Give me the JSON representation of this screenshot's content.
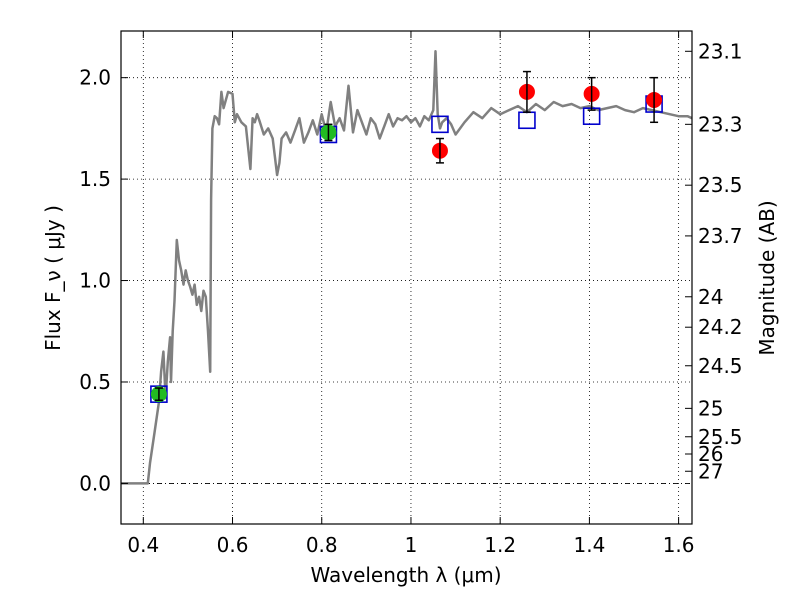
{
  "chart_data": {
    "type": "scatter",
    "xlabel": "Wavelength  λ (μm)",
    "ylabel": "Flux  F_ν  ( μJy )",
    "y2label": "Magnitude (AB)",
    "xlim": [
      0.35,
      1.63
    ],
    "ylim": [
      -0.2,
      2.23
    ],
    "x_ticks": [
      0.4,
      0.6,
      0.8,
      1.0,
      1.2,
      1.4,
      1.6
    ],
    "x_tick_labels": [
      "0.4",
      "0.6",
      "0.8",
      "1",
      "1.2",
      "1.4",
      "1.6"
    ],
    "y_ticks": [
      0.0,
      0.5,
      1.0,
      1.5,
      2.0
    ],
    "y_tick_labels": [
      "0.0",
      "0.5",
      "1.0",
      "1.5",
      "2.0"
    ],
    "y2_ticks": [
      {
        "label": "23.1",
        "flux": 2.13
      },
      {
        "label": "23.3",
        "flux": 1.77
      },
      {
        "label": "23.5",
        "flux": 1.47
      },
      {
        "label": "23.7",
        "flux": 1.22
      },
      {
        "label": "24",
        "flux": 0.92
      },
      {
        "label": "24.2",
        "flux": 0.77
      },
      {
        "label": "24.5",
        "flux": 0.58
      },
      {
        "label": "25",
        "flux": 0.37
      },
      {
        "label": "25.5",
        "flux": 0.23
      },
      {
        "label": "26",
        "flux": 0.145
      },
      {
        "label": "27",
        "flux": 0.06
      }
    ],
    "grid": true,
    "zero_line": 0.0,
    "colors": {
      "model": "#808080",
      "photometry_red": "#ff0000",
      "photometry_green": "#22bb22",
      "model_boxes": "#0000cc",
      "errorbar": "#000000"
    },
    "series": [
      {
        "kind": "model-spectrum",
        "x": [
          0.35,
          0.38,
          0.41,
          0.415,
          0.425,
          0.435,
          0.44,
          0.445,
          0.45,
          0.455,
          0.46,
          0.462,
          0.466,
          0.47,
          0.475,
          0.48,
          0.485,
          0.49,
          0.495,
          0.5,
          0.505,
          0.51,
          0.515,
          0.52,
          0.525,
          0.53,
          0.535,
          0.54,
          0.545,
          0.55,
          0.552,
          0.555,
          0.56,
          0.565,
          0.57,
          0.575,
          0.58,
          0.59,
          0.6,
          0.605,
          0.61,
          0.615,
          0.62,
          0.63,
          0.64,
          0.645,
          0.65,
          0.655,
          0.66,
          0.67,
          0.68,
          0.69,
          0.7,
          0.705,
          0.71,
          0.72,
          0.73,
          0.74,
          0.75,
          0.76,
          0.77,
          0.78,
          0.79,
          0.8,
          0.81,
          0.82,
          0.83,
          0.84,
          0.85,
          0.86,
          0.87,
          0.88,
          0.89,
          0.9,
          0.91,
          0.92,
          0.93,
          0.94,
          0.95,
          0.96,
          0.97,
          0.98,
          0.99,
          1.0,
          1.01,
          1.02,
          1.03,
          1.04,
          1.05,
          1.055,
          1.06,
          1.065,
          1.07,
          1.08,
          1.09,
          1.1,
          1.12,
          1.14,
          1.16,
          1.18,
          1.2,
          1.22,
          1.24,
          1.26,
          1.28,
          1.3,
          1.32,
          1.34,
          1.36,
          1.38,
          1.4,
          1.42,
          1.44,
          1.46,
          1.48,
          1.5,
          1.52,
          1.54,
          1.56,
          1.58,
          1.6,
          1.62,
          1.63
        ],
        "y": [
          0.0,
          0.0,
          0.0,
          0.1,
          0.25,
          0.4,
          0.55,
          0.65,
          0.42,
          0.6,
          0.72,
          0.5,
          0.75,
          0.9,
          1.2,
          1.1,
          1.05,
          0.98,
          1.05,
          1.0,
          0.97,
          0.93,
          0.98,
          0.88,
          0.92,
          0.85,
          0.95,
          0.92,
          0.75,
          0.55,
          1.4,
          1.75,
          1.81,
          1.8,
          1.77,
          1.93,
          1.85,
          1.93,
          1.92,
          1.78,
          1.82,
          1.8,
          1.78,
          1.76,
          1.55,
          1.8,
          1.78,
          1.82,
          1.79,
          1.72,
          1.75,
          1.7,
          1.52,
          1.58,
          1.7,
          1.73,
          1.68,
          1.74,
          1.8,
          1.68,
          1.73,
          1.79,
          1.72,
          1.82,
          1.73,
          1.88,
          1.76,
          1.8,
          1.74,
          1.96,
          1.73,
          1.84,
          1.78,
          1.72,
          1.8,
          1.77,
          1.7,
          1.76,
          1.82,
          1.76,
          1.8,
          1.79,
          1.81,
          1.78,
          1.8,
          1.76,
          1.81,
          1.79,
          1.84,
          2.13,
          1.82,
          1.75,
          1.78,
          1.8,
          1.77,
          1.72,
          1.78,
          1.83,
          1.8,
          1.85,
          1.82,
          1.84,
          1.86,
          1.83,
          1.87,
          1.84,
          1.88,
          1.86,
          1.87,
          1.85,
          1.86,
          1.84,
          1.85,
          1.86,
          1.84,
          1.83,
          1.85,
          1.84,
          1.83,
          1.82,
          1.81,
          1.81,
          1.8
        ]
      },
      {
        "kind": "model-boxes",
        "x": [
          0.435,
          0.815,
          1.065,
          1.26,
          1.405,
          1.545
        ],
        "y": [
          0.44,
          1.72,
          1.77,
          1.79,
          1.81,
          1.87
        ]
      },
      {
        "kind": "observed-red",
        "x": [
          1.065,
          1.26,
          1.405,
          1.545
        ],
        "y": [
          1.64,
          1.93,
          1.92,
          1.89
        ],
        "err": [
          0.06,
          0.1,
          0.08,
          0.11
        ]
      },
      {
        "kind": "observed-green",
        "x": [
          0.435,
          0.815
        ],
        "y": [
          0.44,
          1.73
        ],
        "err": [
          0.03,
          0.04
        ]
      }
    ]
  }
}
